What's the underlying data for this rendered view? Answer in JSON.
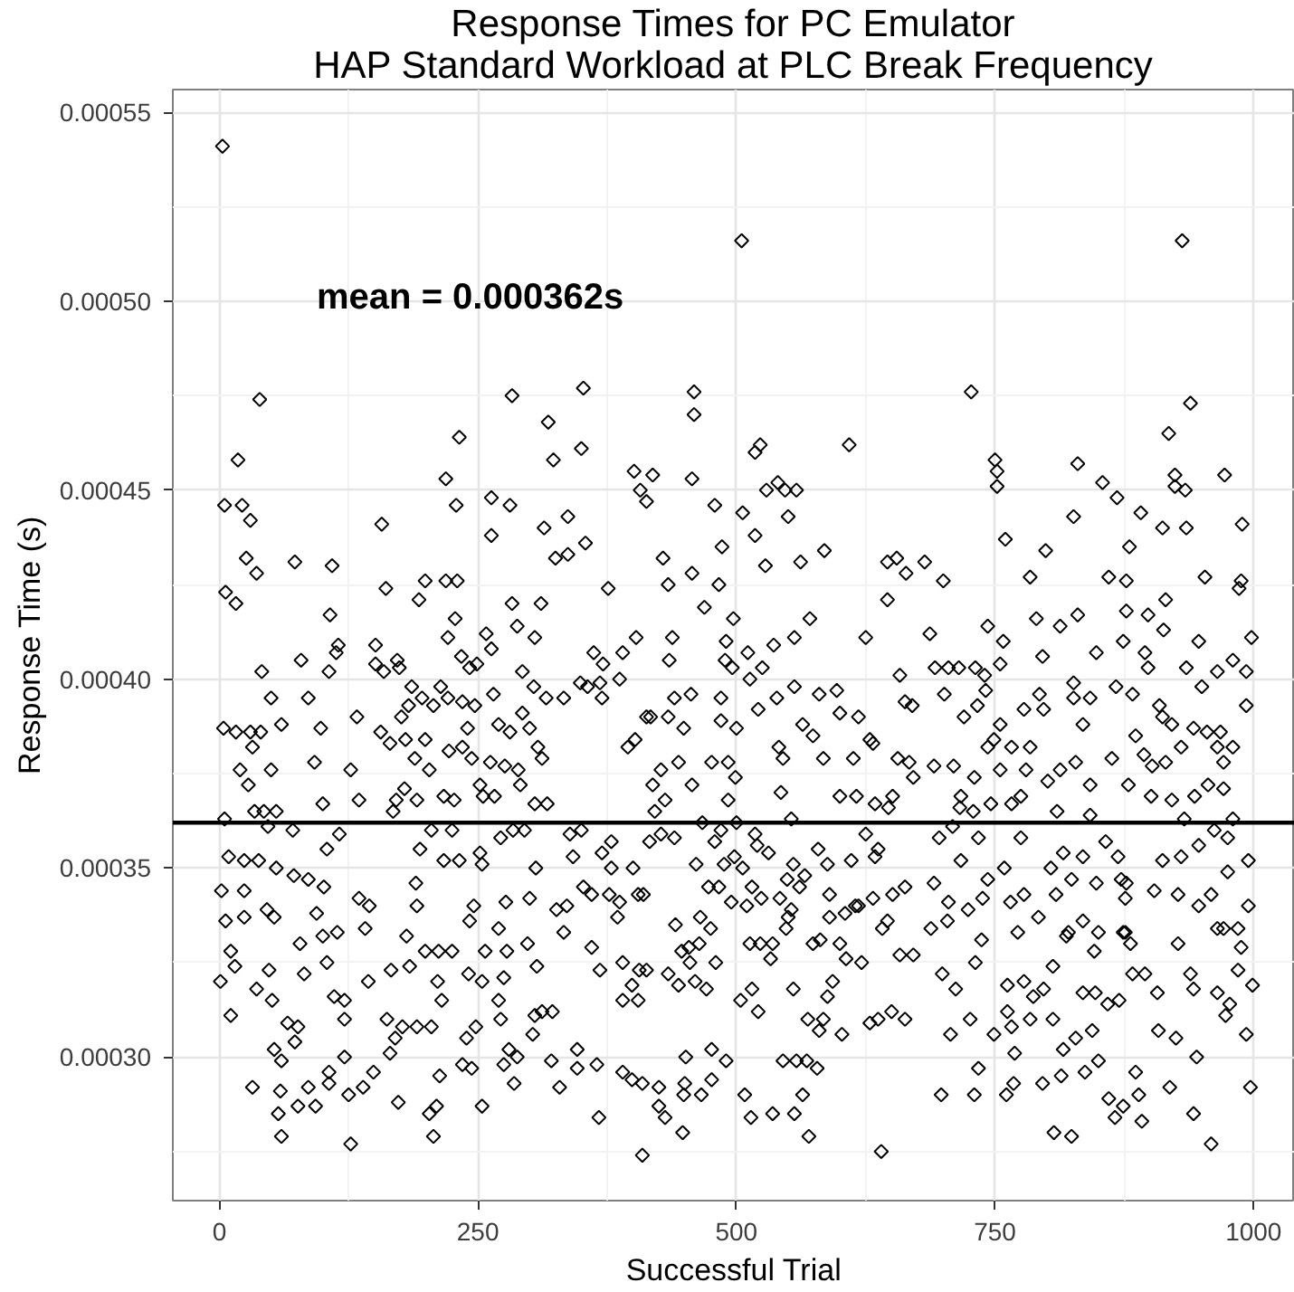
{
  "chart_data": {
    "type": "scatter",
    "title": "Response Times for PC Emulator\nHAP Standard Workload at PLC Break Frequency",
    "xlabel": "Successful Trial",
    "ylabel": "Response Time (s)",
    "xlim": [
      -45,
      1040
    ],
    "ylim": [
      0.000262,
      0.000556
    ],
    "xticks": [
      0,
      250,
      500,
      750,
      1000
    ],
    "yticks": [
      {
        "value": 0.0003,
        "label": "0.00030"
      },
      {
        "value": 0.00035,
        "label": "0.00035"
      },
      {
        "value": 0.0004,
        "label": "0.00040"
      },
      {
        "value": 0.00045,
        "label": "0.00045"
      },
      {
        "value": 0.0005,
        "label": "0.00050"
      },
      {
        "value": 0.00055,
        "label": "0.00055"
      }
    ],
    "grid": true,
    "marker": "diamond",
    "color": "#000000",
    "ref_lines": [
      {
        "axis": "y",
        "value": 0.000362,
        "label": "mean = 0.000362s",
        "color": "#000000"
      }
    ],
    "x": [
      3,
      39,
      18,
      5,
      22,
      30,
      26,
      36,
      73,
      109,
      157,
      6,
      16,
      107,
      161,
      199,
      219,
      230,
      193,
      228,
      221,
      232,
      219,
      229,
      283,
      263,
      281,
      263,
      318,
      314,
      283,
      288,
      258,
      305,
      311,
      151,
      115,
      505,
      352,
      459,
      459,
      323,
      350,
      401,
      419,
      407,
      413,
      457,
      479,
      518,
      523,
      529,
      540,
      547,
      558,
      550,
      506,
      518,
      609,
      337,
      354,
      325,
      337,
      429,
      486,
      457,
      434,
      376,
      483,
      469,
      497,
      585,
      562,
      528,
      646,
      655,
      664,
      646,
      571,
      556,
      403,
      438,
      625,
      490,
      931,
      727,
      939,
      918,
      750,
      752,
      752,
      830,
      854,
      868,
      924,
      924,
      934,
      972,
      826,
      891,
      912,
      935,
      989,
      760,
      799,
      880,
      682,
      700,
      784,
      860,
      877,
      953,
      988,
      986,
      915,
      877,
      898,
      830,
      790,
      813,
      913,
      743,
      758,
      687,
      874,
      947,
      998,
      41,
      50,
      86,
      4,
      16,
      30,
      40,
      32,
      20,
      28,
      50,
      60,
      92,
      98,
      133,
      156,
      127,
      100,
      135,
      5,
      34,
      43,
      55,
      47,
      71,
      104,
      116,
      9,
      2,
      24,
      38,
      24,
      6,
      24,
      46,
      53,
      55,
      72,
      86,
      101,
      94,
      100,
      114,
      135,
      145,
      141,
      11,
      1,
      15,
      36,
      48,
      78,
      82,
      104,
      51,
      11,
      66,
      76,
      111,
      121,
      121,
      144,
      53,
      60,
      73,
      32,
      59,
      57,
      60,
      76,
      93,
      86,
      106,
      106,
      121,
      125,
      127,
      139,
      149,
      162,
      177,
      191,
      205,
      170,
      165,
      173,
      207,
      203,
      210,
      213,
      239,
      235,
      244,
      254,
      248,
      275,
      280,
      288,
      285,
      303,
      305,
      312,
      322,
      211,
      215,
      184,
      199,
      212,
      225,
      166,
      181,
      191,
      190,
      217,
      232,
      242,
      246,
      257,
      241,
      254,
      270,
      278,
      275,
      270,
      272,
      298,
      307,
      254,
      277,
      300,
      306,
      225,
      205,
      194,
      252,
      272,
      284,
      295,
      79,
      106,
      113,
      151,
      159,
      172,
      174,
      186,
      196,
      207,
      214,
      221,
      176,
      183,
      235,
      247,
      240,
      234,
      242,
      249,
      263,
      293,
      304,
      316,
      265,
      270,
      281,
      293,
      300,
      308,
      312,
      165,
      180,
      189,
      199,
      179,
      191,
      217,
      227,
      252,
      255,
      266,
      222,
      235,
      244,
      262,
      276,
      289,
      291,
      203,
      168,
      171,
      305,
      317,
      362,
      371,
      390,
      368,
      387,
      349,
      356,
      370,
      333,
      435,
      489,
      496,
      511,
      525,
      536,
      513,
      440,
      456,
      434,
      413,
      417,
      402,
      395,
      449,
      444,
      427,
      419,
      431,
      421,
      457,
      476,
      492,
      485,
      485,
      500,
      521,
      492,
      499,
      543,
      553,
      539,
      556,
      564,
      574,
      584,
      580,
      597,
      600,
      618,
      613,
      629,
      632,
      656,
      667,
      671,
      663,
      670,
      658,
      541,
      545,
      600,
      616,
      634,
      647,
      651,
      339,
      350,
      342,
      370,
      379,
      379,
      400,
      352,
      360,
      377,
      387,
      405,
      410,
      385,
      326,
      336,
      333,
      416,
      427,
      440,
      467,
      479,
      485,
      500,
      518,
      531,
      520,
      579,
      588,
      611,
      625,
      634,
      637,
      461,
      488,
      498,
      506,
      473,
      483,
      495,
      510,
      515,
      524,
      542,
      549,
      555,
      566,
      561,
      550,
      548,
      553,
      590,
      590,
      605,
      615,
      632,
      618,
      646,
      641,
      651,
      663,
      360,
      368,
      390,
      406,
      413,
      399,
      390,
      405,
      434,
      444,
      447,
      454,
      464,
      455,
      460,
      471,
      480,
      441,
      465,
      475,
      513,
      523,
      535,
      533,
      515,
      504,
      521,
      555,
      574,
      581,
      600,
      606,
      621,
      593,
      588,
      584,
      569,
      580,
      602,
      629,
      637,
      650,
      663,
      658,
      671,
      346,
      321,
      329,
      346,
      365,
      367,
      390,
      399,
      409,
      425,
      425,
      431,
      409,
      448,
      449,
      451,
      450,
      466,
      476,
      476,
      490,
      508,
      514,
      535,
      545,
      558,
      568,
      578,
      556,
      564,
      570,
      640,
      692,
      705,
      715,
      731,
      740,
      701,
      720,
      733,
      741,
      755,
      743,
      749,
      755,
      766,
      784,
      778,
      797,
      793,
      796,
      826,
      826,
      842,
      848,
      835,
      867,
      883,
      898,
      895,
      935,
      950,
      965,
      980,
      993,
      993,
      909,
      912,
      921,
      930,
      942,
      955,
      968,
      980,
      965,
      971,
      886,
      894,
      902,
      915,
      863,
      879,
      901,
      921,
      943,
      956,
      971,
      933,
      980,
      828,
      813,
      801,
      780,
      775,
      766,
      755,
      746,
      730,
      717,
      691,
      710,
      716,
      729,
      810,
      842,
      842,
      696,
      709,
      717,
      734,
      759,
      775,
      816,
      835,
      857,
      869,
      848,
      877,
      912,
      930,
      947,
      962,
      975,
      975,
      995,
      995,
      985,
      988,
      985,
      999,
      691,
      705,
      704,
      724,
      738,
      743,
      778,
      765,
      809,
      824,
      804,
      792,
      772,
      737,
      731,
      688,
      699,
      712,
      726,
      707,
      734,
      698,
      730,
      749,
      762,
      778,
      762,
      766,
      784,
      769,
      768,
      761,
      796,
      814,
      816,
      828,
      844,
      835,
      847,
      859,
      870,
      850,
      837,
      860,
      866,
      874,
      889,
      886,
      892,
      919,
      942,
      959,
      824,
      807,
      806,
      797,
      787,
      806,
      821,
      835,
      846,
      874,
      883,
      895,
      907,
      939,
      942,
      965,
      977,
      973,
      993,
      997,
      925,
      908,
      945,
      872,
      876,
      904,
      927,
      947,
      959,
      965,
      971,
      927,
      881,
      876,
      850,
      819
    ],
    "values": [
      0.000541,
      0.000474,
      0.000458,
      0.000446,
      0.000446,
      0.000442,
      0.000432,
      0.000428,
      0.000431,
      0.00043,
      0.000441,
      0.000423,
      0.00042,
      0.000417,
      0.000424,
      0.000426,
      0.000426,
      0.000426,
      0.000421,
      0.000416,
      0.000411,
      0.000464,
      0.000453,
      0.000446,
      0.000475,
      0.000448,
      0.000446,
      0.000438,
      0.000468,
      0.00044,
      0.00042,
      0.000414,
      0.000412,
      0.000411,
      0.00042,
      0.000409,
      0.000409,
      0.000516,
      0.000477,
      0.000476,
      0.00047,
      0.000458,
      0.000461,
      0.000455,
      0.000454,
      0.00045,
      0.000447,
      0.000453,
      0.000446,
      0.00046,
      0.000462,
      0.00045,
      0.000452,
      0.00045,
      0.00045,
      0.000443,
      0.000444,
      0.000438,
      0.000462,
      0.000443,
      0.000436,
      0.000432,
      0.000433,
      0.000432,
      0.000435,
      0.000428,
      0.000425,
      0.000424,
      0.000425,
      0.000419,
      0.000416,
      0.000434,
      0.000431,
      0.00043,
      0.000431,
      0.000432,
      0.000428,
      0.000421,
      0.000416,
      0.000411,
      0.000411,
      0.000411,
      0.000411,
      0.00041,
      0.000516,
      0.000476,
      0.000473,
      0.000465,
      0.000458,
      0.000455,
      0.000451,
      0.000457,
      0.000452,
      0.000448,
      0.000454,
      0.000451,
      0.00045,
      0.000454,
      0.000443,
      0.000444,
      0.00044,
      0.00044,
      0.000441,
      0.000437,
      0.000434,
      0.000435,
      0.000431,
      0.000426,
      0.000427,
      0.000427,
      0.000426,
      0.000427,
      0.000426,
      0.000424,
      0.000421,
      0.000418,
      0.000417,
      0.000417,
      0.000416,
      0.000414,
      0.000413,
      0.000414,
      0.00041,
      0.000412,
      0.00041,
      0.00041,
      0.000411,
      0.000402,
      0.000395,
      0.000395,
      0.000387,
      0.000386,
      0.000386,
      0.000386,
      0.000382,
      0.000376,
      0.000372,
      0.000376,
      0.000388,
      0.000378,
      0.000387,
      0.00039,
      0.000386,
      0.000376,
      0.000367,
      0.000368,
      0.000363,
      0.000365,
      0.000365,
      0.000365,
      0.000361,
      0.00036,
      0.000355,
      0.000359,
      0.000353,
      0.000344,
      0.000352,
      0.000352,
      0.000344,
      0.000336,
      0.000337,
      0.000339,
      0.000337,
      0.00035,
      0.000348,
      0.000347,
      0.000345,
      0.000338,
      0.000332,
      0.000333,
      0.000342,
      0.00034,
      0.000334,
      0.000328,
      0.00032,
      0.000324,
      0.000318,
      0.000323,
      0.00033,
      0.000322,
      0.000325,
      0.000315,
      0.000311,
      0.000309,
      0.000308,
      0.000316,
      0.000315,
      0.00031,
      0.00032,
      0.000302,
      0.000299,
      0.000304,
      0.000292,
      0.000291,
      0.000285,
      0.000279,
      0.000287,
      0.000287,
      0.000292,
      0.000296,
      0.000293,
      0.0003,
      0.00029,
      0.000277,
      0.000292,
      0.000296,
      0.00031,
      0.000308,
      0.000308,
      0.000308,
      0.000305,
      0.000301,
      0.000288,
      0.000279,
      0.000285,
      0.000287,
      0.000295,
      0.000305,
      0.000298,
      0.000297,
      0.000287,
      0.000308,
      0.000298,
      0.000302,
      0.0003,
      0.000293,
      0.000306,
      0.000311,
      0.000312,
      0.000312,
      0.00032,
      0.000315,
      0.000324,
      0.000328,
      0.000328,
      0.000328,
      0.000323,
      0.000332,
      0.00034,
      0.000346,
      0.000352,
      0.000352,
      0.000336,
      0.00034,
      0.000328,
      0.000322,
      0.00032,
      0.000334,
      0.000328,
      0.000321,
      0.000315,
      0.00031,
      0.00033,
      0.000324,
      0.000351,
      0.000341,
      0.000342,
      0.00035,
      0.00036,
      0.00036,
      0.000355,
      0.000354,
      0.000358,
      0.00036,
      0.00036,
      0.000405,
      0.000402,
      0.000407,
      0.000404,
      0.000402,
      0.000405,
      0.000403,
      0.000398,
      0.000395,
      0.000393,
      0.000398,
      0.000395,
      0.00039,
      0.000393,
      0.000394,
      0.000393,
      0.000387,
      0.000406,
      0.000403,
      0.000404,
      0.000408,
      0.000402,
      0.000398,
      0.000395,
      0.000396,
      0.000388,
      0.000386,
      0.000391,
      0.000387,
      0.000382,
      0.000379,
      0.000383,
      0.000384,
      0.000379,
      0.000384,
      0.000371,
      0.000368,
      0.000369,
      0.000368,
      0.000372,
      0.000369,
      0.000369,
      0.000381,
      0.000382,
      0.000379,
      0.000378,
      0.000377,
      0.000376,
      0.000372,
      0.000376,
      0.000365,
      0.000368,
      0.000367,
      0.000367,
      0.000407,
      0.000404,
      0.000407,
      0.000399,
      0.0004,
      0.000399,
      0.000398,
      0.000395,
      0.000395,
      0.000405,
      0.000405,
      0.000403,
      0.000407,
      0.000403,
      0.000409,
      0.0004,
      0.000395,
      0.000396,
      0.00039,
      0.00039,
      0.00039,
      0.000384,
      0.000382,
      0.000387,
      0.000378,
      0.000376,
      0.000372,
      0.000368,
      0.000365,
      0.000372,
      0.000378,
      0.000378,
      0.000395,
      0.000389,
      0.000387,
      0.000392,
      0.000368,
      0.000374,
      0.00037,
      0.000363,
      0.000395,
      0.000398,
      0.000388,
      0.000385,
      0.000379,
      0.000396,
      0.000397,
      0.000391,
      0.00039,
      0.000379,
      0.000384,
      0.000383,
      0.000379,
      0.000378,
      0.000374,
      0.000394,
      0.000393,
      0.000401,
      0.000382,
      0.000379,
      0.000369,
      0.000369,
      0.000367,
      0.000366,
      0.000369,
      0.000359,
      0.00036,
      0.000353,
      0.000354,
      0.000357,
      0.00035,
      0.00035,
      0.000345,
      0.000343,
      0.000343,
      0.000341,
      0.000343,
      0.000343,
      0.000337,
      0.000339,
      0.00034,
      0.000333,
      0.000357,
      0.000359,
      0.000358,
      0.000362,
      0.000357,
      0.00036,
      0.000362,
      0.000359,
      0.000354,
      0.000356,
      0.000355,
      0.000351,
      0.000352,
      0.000359,
      0.000353,
      0.000355,
      0.000351,
      0.000351,
      0.000353,
      0.00035,
      0.000345,
      0.000345,
      0.000341,
      0.00034,
      0.000345,
      0.000342,
      0.000342,
      0.000347,
      0.000351,
      0.000348,
      0.000345,
      0.000337,
      0.000334,
      0.000339,
      0.000343,
      0.000337,
      0.000338,
      0.00034,
      0.000342,
      0.00034,
      0.000336,
      0.000334,
      0.000343,
      0.000345,
      0.000329,
      0.000323,
      0.000325,
      0.000323,
      0.000323,
      0.000319,
      0.000315,
      0.000315,
      0.000322,
      0.000319,
      0.000328,
      0.000329,
      0.00033,
      0.000325,
      0.00032,
      0.000318,
      0.000325,
      0.000335,
      0.000337,
      0.000334,
      0.00033,
      0.00033,
      0.00033,
      0.000326,
      0.000318,
      0.000315,
      0.000312,
      0.000318,
      0.00033,
      0.000331,
      0.00033,
      0.000326,
      0.000325,
      0.00032,
      0.000316,
      0.00031,
      0.00031,
      0.000307,
      0.000306,
      0.000309,
      0.00031,
      0.000312,
      0.00031,
      0.000327,
      0.000327,
      0.000302,
      0.000299,
      0.000292,
      0.000297,
      0.000298,
      0.000284,
      0.000296,
      0.000294,
      0.000293,
      0.000292,
      0.000287,
      0.000284,
      0.000274,
      0.00028,
      0.00029,
      0.0003,
      0.000293,
      0.00029,
      0.000302,
      0.000294,
      0.000299,
      0.00029,
      0.000284,
      0.000285,
      0.000299,
      0.000299,
      0.000299,
      0.000297,
      0.000285,
      0.00029,
      0.000279,
      0.000275,
      0.000403,
      0.000403,
      0.000403,
      0.000403,
      0.000401,
      0.000396,
      0.00039,
      0.000393,
      0.000397,
      0.000404,
      0.000382,
      0.000384,
      0.000388,
      0.000382,
      0.000382,
      0.000392,
      0.000392,
      0.000396,
      0.000406,
      0.000399,
      0.000395,
      0.000395,
      0.000407,
      0.000388,
      0.000398,
      0.000396,
      0.000403,
      0.000407,
      0.000403,
      0.000398,
      0.000402,
      0.000405,
      0.000402,
      0.000393,
      0.000393,
      0.00039,
      0.000388,
      0.000382,
      0.000387,
      0.000386,
      0.000386,
      0.000382,
      0.000382,
      0.000378,
      0.000385,
      0.00038,
      0.000377,
      0.000378,
      0.000379,
      0.000372,
      0.000369,
      0.000368,
      0.000369,
      0.000372,
      0.000371,
      0.000363,
      0.000363,
      0.000378,
      0.000376,
      0.000373,
      0.000376,
      0.000369,
      0.000367,
      0.000376,
      0.000367,
      0.000374,
      0.000369,
      0.000377,
      0.000377,
      0.000366,
      0.000365,
      0.000365,
      0.000372,
      0.000364,
      0.000358,
      0.000361,
      0.000352,
      0.000358,
      0.00035,
      0.000358,
      0.000354,
      0.000353,
      0.000357,
      0.000353,
      0.000346,
      0.000346,
      0.000352,
      0.000353,
      0.000356,
      0.00036,
      0.000358,
      0.000349,
      0.000352,
      0.00034,
      0.000334,
      0.000329,
      0.000323,
      0.000319,
      0.000346,
      0.000341,
      0.000336,
      0.000339,
      0.000342,
      0.000347,
      0.000343,
      0.000341,
      0.000343,
      0.000347,
      0.00035,
      0.000337,
      0.000333,
      0.000331,
      0.000325,
      0.000334,
      0.000322,
      0.000318,
      0.00031,
      0.000306,
      0.000297,
      0.00029,
      0.00029,
      0.000306,
      0.000319,
      0.00032,
      0.000312,
      0.000308,
      0.00031,
      0.000301,
      0.000293,
      0.00029,
      0.000293,
      0.000295,
      0.000302,
      0.000305,
      0.000307,
      0.000317,
      0.000317,
      0.000314,
      0.000315,
      0.000299,
      0.000296,
      0.000289,
      0.000284,
      0.000287,
      0.00029,
      0.000296,
      0.000283,
      0.000292,
      0.000285,
      0.000277,
      0.000279,
      0.00028,
      0.00031,
      0.000318,
      0.000316,
      0.000324,
      0.000333,
      0.000336,
      0.000328,
      0.000333,
      0.000322,
      0.000322,
      0.000317,
      0.000322,
      0.000318,
      0.000317,
      0.000314,
      0.000311,
      0.000306,
      0.000292,
      0.000305,
      0.000307,
      0.0003,
      0.000347,
      0.000342,
      0.000344,
      0.000343,
      0.00034,
      0.000343,
      0.000334,
      0.000334,
      0.00033,
      0.00033,
      0.000333,
      0.000333,
      0.000332
    ]
  }
}
